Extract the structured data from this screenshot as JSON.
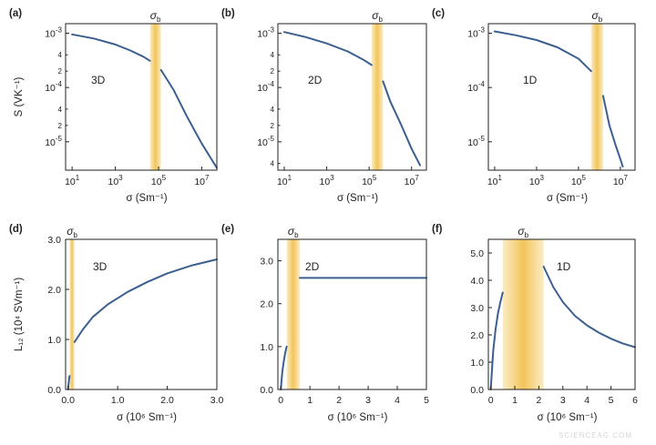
{
  "watermark": "SCIENCEAG.COM",
  "colors": {
    "curve": "#3b5f8f",
    "band_center": "#f2c55a",
    "band_edge": "#fbecc5",
    "axis": "#222222"
  },
  "chart_data": [
    {
      "id": "a",
      "tag": "(a)",
      "type": "line",
      "inner_label": "3D",
      "band_label": "σb",
      "ylabel": "S (VK⁻¹)",
      "xlabel": "σ (Sm⁻¹)",
      "x_scale": "log",
      "y_scale": "log",
      "xlim": [
        5,
        50000000
      ],
      "ylim": [
        3e-06,
        0.0015
      ],
      "band": [
        40000,
        130000
      ],
      "xticks": [
        {
          "v": 10,
          "t": "10^1"
        },
        {
          "v": 1000,
          "t": "10^3"
        },
        {
          "v": 100000,
          "t": "10^5"
        },
        {
          "v": 10000000,
          "t": "10^7"
        }
      ],
      "yticks": [
        {
          "v": 1e-05,
          "t": "10^-5"
        },
        {
          "v": 0.0001,
          "t": "10^-4"
        },
        {
          "v": 0.001,
          "t": "10^-3"
        }
      ],
      "yminor": [
        {
          "v": 2e-05,
          "t": "2"
        },
        {
          "v": 4e-05,
          "t": "4"
        },
        {
          "v": 0.0002,
          "t": "2"
        },
        {
          "v": 0.0004,
          "t": "4"
        }
      ],
      "series": [
        {
          "x": [
            10,
            100,
            1000,
            5000,
            20000,
            40000
          ],
          "y": [
            0.00095,
            0.0008,
            0.00062,
            0.00048,
            0.00037,
            0.00031
          ]
        },
        {
          "x": [
            130000,
            500000,
            2000000,
            10000000,
            50000000
          ],
          "y": [
            0.00021,
            9e-05,
            3e-05,
            9.3e-06,
            3.3e-06
          ]
        }
      ]
    },
    {
      "id": "b",
      "tag": "(b)",
      "type": "line",
      "inner_label": "2D",
      "band_label": "σb",
      "ylabel": "",
      "xlabel": "σ (Sm⁻¹)",
      "x_scale": "log",
      "y_scale": "log",
      "xlim": [
        5,
        50000000
      ],
      "ylim": [
        3e-06,
        0.0015
      ],
      "band": [
        130000,
        450000
      ],
      "xticks": [
        {
          "v": 10,
          "t": "10^1"
        },
        {
          "v": 1000,
          "t": "10^3"
        },
        {
          "v": 100000,
          "t": "10^5"
        },
        {
          "v": 10000000,
          "t": "10^7"
        }
      ],
      "yticks": [
        {
          "v": 1e-05,
          "t": "10^-5"
        },
        {
          "v": 0.0001,
          "t": "10^-4"
        },
        {
          "v": 0.001,
          "t": "10^-3"
        }
      ],
      "yminor": [
        {
          "v": 4e-06,
          "t": "4"
        },
        {
          "v": 2e-05,
          "t": "2"
        },
        {
          "v": 4e-05,
          "t": "4"
        },
        {
          "v": 0.0002,
          "t": "2"
        },
        {
          "v": 0.0004,
          "t": "4"
        }
      ],
      "series": [
        {
          "x": [
            10,
            100,
            1000,
            10000,
            50000,
            130000
          ],
          "y": [
            0.00105,
            0.00085,
            0.00065,
            0.00046,
            0.00033,
            0.00026
          ]
        },
        {
          "x": [
            450000,
            1000000,
            3000000,
            10000000,
            25000000
          ],
          "y": [
            0.00013,
            5.5e-05,
            2.2e-05,
            7.5e-06,
            3.7e-06
          ]
        }
      ]
    },
    {
      "id": "c",
      "tag": "(c)",
      "type": "line",
      "inner_label": "1D",
      "band_label": "σb",
      "ylabel": "",
      "xlabel": "σ (Sm⁻¹)",
      "x_scale": "log",
      "y_scale": "log",
      "xlim": [
        5,
        50000000
      ],
      "ylim": [
        3e-06,
        0.0015
      ],
      "band": [
        400000,
        1500000
      ],
      "xticks": [
        {
          "v": 10,
          "t": "10^1"
        },
        {
          "v": 1000,
          "t": "10^3"
        },
        {
          "v": 100000,
          "t": "10^5"
        },
        {
          "v": 10000000,
          "t": "10^7"
        }
      ],
      "yticks": [
        {
          "v": 1e-05,
          "t": "10^-5"
        },
        {
          "v": 0.0001,
          "t": "10^-4"
        },
        {
          "v": 0.001,
          "t": "10^-3"
        }
      ],
      "yminor": [],
      "series": [
        {
          "x": [
            10,
            100,
            1000,
            10000,
            100000,
            400000
          ],
          "y": [
            0.00108,
            0.00092,
            0.00075,
            0.00055,
            0.00034,
            0.0002
          ]
        },
        {
          "x": [
            1500000,
            3000000,
            6000000,
            10000000,
            13000000
          ],
          "y": [
            7e-05,
            2e-05,
            8.5e-06,
            4.8e-06,
            3.5e-06
          ]
        }
      ]
    },
    {
      "id": "d",
      "tag": "(d)",
      "type": "line",
      "inner_label": "3D",
      "band_label": "σb",
      "ylabel": "L₁₂ (10⁴ SVm⁻¹)",
      "xlabel": "σ (10⁶ Sm⁻¹)",
      "x_scale": "linear",
      "y_scale": "linear",
      "xlim": [
        -0.05,
        3.0
      ],
      "ylim": [
        0,
        3.0
      ],
      "band": [
        0.03,
        0.13
      ],
      "xticks": [
        {
          "v": 0,
          "t": "0.0"
        },
        {
          "v": 1,
          "t": "1.0"
        },
        {
          "v": 2,
          "t": "2.0"
        },
        {
          "v": 3,
          "t": "3.0"
        }
      ],
      "yticks": [
        {
          "v": 0,
          "t": "0.0"
        },
        {
          "v": 1,
          "t": "1.0"
        },
        {
          "v": 2,
          "t": "2.0"
        },
        {
          "v": 3,
          "t": "3.0"
        }
      ],
      "yminor": [],
      "series": [
        {
          "x": [
            0.0,
            0.01,
            0.02,
            0.03
          ],
          "y": [
            0.0,
            0.12,
            0.2,
            0.27
          ]
        },
        {
          "x": [
            0.13,
            0.3,
            0.5,
            0.8,
            1.2,
            1.6,
            2.0,
            2.5,
            3.0
          ],
          "y": [
            0.95,
            1.2,
            1.45,
            1.7,
            1.95,
            2.15,
            2.32,
            2.48,
            2.6
          ]
        }
      ]
    },
    {
      "id": "e",
      "tag": "(e)",
      "type": "line",
      "inner_label": "2D",
      "band_label": "σb",
      "ylabel": "",
      "xlabel": "σ (10⁶ Sm⁻¹)",
      "x_scale": "linear",
      "y_scale": "linear",
      "xlim": [
        -0.1,
        5.0
      ],
      "ylim": [
        0,
        3.5
      ],
      "band": [
        0.2,
        0.65
      ],
      "xticks": [
        {
          "v": 0,
          "t": "0"
        },
        {
          "v": 1,
          "t": "1"
        },
        {
          "v": 2,
          "t": "2"
        },
        {
          "v": 3,
          "t": "3"
        },
        {
          "v": 4,
          "t": "4"
        },
        {
          "v": 5,
          "t": "5"
        }
      ],
      "yticks": [
        {
          "v": 0,
          "t": "0.0"
        },
        {
          "v": 1,
          "t": "1.0"
        },
        {
          "v": 2,
          "t": "2.0"
        },
        {
          "v": 3,
          "t": "3.0"
        }
      ],
      "yminor": [],
      "series": [
        {
          "x": [
            0.0,
            0.05,
            0.1,
            0.15,
            0.2
          ],
          "y": [
            0.0,
            0.4,
            0.65,
            0.85,
            1.0
          ]
        },
        {
          "x": [
            0.65,
            5.0
          ],
          "y": [
            2.6,
            2.6
          ]
        }
      ]
    },
    {
      "id": "f",
      "tag": "(f)",
      "type": "line",
      "inner_label": "1D",
      "band_label": "σb",
      "ylabel": "",
      "xlabel": "σ (10⁶ Sm⁻¹)",
      "x_scale": "linear",
      "y_scale": "linear",
      "xlim": [
        -0.1,
        6.0
      ],
      "ylim": [
        0,
        5.5
      ],
      "band": [
        0.5,
        2.2
      ],
      "xticks": [
        {
          "v": 0,
          "t": "0"
        },
        {
          "v": 1,
          "t": "1"
        },
        {
          "v": 2,
          "t": "2"
        },
        {
          "v": 3,
          "t": "3"
        },
        {
          "v": 4,
          "t": "4"
        },
        {
          "v": 5,
          "t": "5"
        },
        {
          "v": 6,
          "t": "6"
        }
      ],
      "yticks": [
        {
          "v": 0,
          "t": "0.0"
        },
        {
          "v": 1,
          "t": "1.0"
        },
        {
          "v": 2,
          "t": "2.0"
        },
        {
          "v": 3,
          "t": "3.0"
        },
        {
          "v": 4,
          "t": "4.0"
        },
        {
          "v": 5,
          "t": "5.0"
        }
      ],
      "yminor": [],
      "series": [
        {
          "x": [
            0.0,
            0.1,
            0.2,
            0.3,
            0.4,
            0.5
          ],
          "y": [
            0.0,
            1.4,
            2.2,
            2.8,
            3.2,
            3.55
          ]
        },
        {
          "x": [
            2.2,
            2.6,
            3.0,
            3.5,
            4.0,
            4.5,
            5.0,
            5.5,
            6.0
          ],
          "y": [
            4.5,
            3.75,
            3.2,
            2.7,
            2.35,
            2.08,
            1.86,
            1.68,
            1.55
          ]
        }
      ]
    }
  ]
}
